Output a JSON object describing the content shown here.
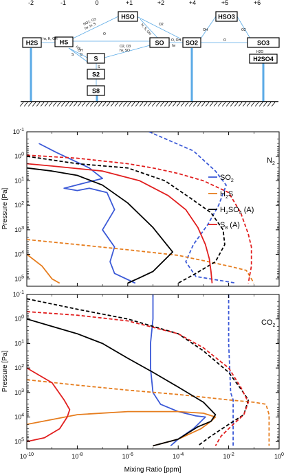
{
  "scheme": {
    "oxidation_states": [
      "-2",
      "-1",
      "0",
      "+1",
      "+2",
      "+4",
      "+5",
      "+6"
    ],
    "species": [
      "H2S",
      "HS",
      "S",
      "S2",
      "S8",
      "HSO",
      "SO",
      "SO2",
      "HSO3",
      "SO3",
      "H2SO4"
    ],
    "reaction_labels": [
      "hv, H, OH",
      "HO2, O3",
      "hv, H, S",
      "H, S, OH",
      "O",
      "O2",
      "O, OH",
      "hv",
      "HS",
      "OH",
      "O",
      "O2, O3",
      "hv, SO",
      "S",
      "S",
      "OH",
      "O",
      "O2",
      "H2O"
    ],
    "colors": {
      "arrow": "#5aaae6",
      "line": "#5aaae6"
    }
  },
  "chart_data": [
    {
      "type": "line",
      "panel_label": "N2",
      "panel_label_main": "N",
      "panel_label_sub": "2",
      "ylabel": "Pressure [Pa]",
      "xscale": "log",
      "yscale": "log",
      "xlim": [
        1e-10,
        1
      ],
      "ylim": [
        0.1,
        200000
      ],
      "y_inverted": true,
      "x_ticks": [
        "10-10",
        "10-8",
        "10-6",
        "10-4",
        "10-2",
        "100"
      ],
      "y_ticks": [
        "10-1",
        "100",
        "101",
        "102",
        "103",
        "104",
        "105"
      ],
      "legend_placement": "right",
      "legend": [
        {
          "main": "SO",
          "sub": "2",
          "suffix": "",
          "color": "#3c5ad7"
        },
        {
          "main": "H",
          "sub": "2",
          "suffix": "S",
          "color": "#e67d1e"
        },
        {
          "main": "H",
          "sub": "2",
          "suffix": "SO",
          "sub2": "4",
          "suffix2": " (A)",
          "color": "#000000"
        },
        {
          "main": "S",
          "sub": "8",
          "suffix": " (A)",
          "color": "#e11e1e"
        }
      ],
      "series": [
        {
          "color": "#3c5ad7",
          "style": "solid",
          "points": [
            [
              3e-10,
              0.3
            ],
            [
              1.5e-09,
              0.7
            ],
            [
              3e-08,
              3
            ],
            [
              1e-07,
              8
            ],
            [
              3e-09,
              20
            ],
            [
              1e-08,
              25
            ],
            [
              3e-08,
              20
            ],
            [
              1.5e-07,
              30
            ],
            [
              3e-07,
              150
            ],
            [
              1e-07,
              1000
            ],
            [
              3e-07,
              5000
            ],
            [
              2e-07,
              20000
            ],
            [
              3e-07,
              60000
            ],
            [
              2e-06,
              150000
            ]
          ]
        },
        {
          "color": "#3c5ad7",
          "style": "dashed",
          "points": [
            [
              7e-06,
              0.1
            ],
            [
              0.0004,
              0.6
            ],
            [
              0.003,
              4
            ],
            [
              0.008,
              15
            ],
            [
              0.004,
              100
            ],
            [
              0.0015,
              600
            ],
            [
              0.0004,
              4000
            ],
            [
              0.0002,
              20000
            ],
            [
              0.0005,
              80000
            ],
            [
              0.02,
              150000
            ]
          ]
        },
        {
          "color": "#e67d1e",
          "style": "solid",
          "points": [
            [
              1e-10,
              10000
            ],
            [
              4e-10,
              30000
            ],
            [
              1e-09,
              100000
            ],
            [
              2e-09,
              150000
            ]
          ]
        },
        {
          "color": "#e67d1e",
          "style": "dashed",
          "points": [
            [
              1e-10,
              2500
            ],
            [
              1e-08,
              4000
            ],
            [
              1e-06,
              6500
            ],
            [
              0.0001,
              11000
            ],
            [
              0.001,
              18000
            ],
            [
              0.01,
              30000
            ],
            [
              0.05,
              45000
            ],
            [
              0.08,
              100000
            ],
            [
              0.1,
              150000
            ]
          ]
        },
        {
          "color": "#000000",
          "style": "solid",
          "points": [
            [
              1e-10,
              3
            ],
            [
              1e-09,
              4
            ],
            [
              1e-08,
              6
            ],
            [
              1e-07,
              15
            ],
            [
              1e-06,
              80
            ],
            [
              1e-05,
              800
            ],
            [
              6e-05,
              8000
            ],
            [
              1e-05,
              50000
            ],
            [
              3e-06,
              90000
            ],
            [
              1e-06,
              150000
            ]
          ]
        },
        {
          "color": "#000000",
          "style": "dashed",
          "points": [
            [
              1e-10,
              1
            ],
            [
              1e-08,
              2
            ],
            [
              1e-06,
              3
            ],
            [
              3e-05,
              10
            ],
            [
              0.0003,
              50
            ],
            [
              0.002,
              200
            ],
            [
              0.006,
              1000
            ],
            [
              0.007,
              4000
            ],
            [
              0.003,
              20000
            ],
            [
              0.0005,
              60000
            ],
            [
              0.0001,
              150000
            ]
          ]
        },
        {
          "color": "#e11e1e",
          "style": "solid",
          "points": [
            [
              1e-10,
              2
            ],
            [
              1e-09,
              2.5
            ],
            [
              1e-07,
              4
            ],
            [
              3e-06,
              10
            ],
            [
              4e-05,
              40
            ],
            [
              0.0002,
              150
            ],
            [
              0.0006,
              800
            ],
            [
              0.0012,
              4000
            ],
            [
              0.0017,
              15000
            ],
            [
              0.002,
              50000
            ],
            [
              0.0022,
              150000
            ]
          ]
        },
        {
          "color": "#e11e1e",
          "style": "dashed",
          "points": [
            [
              1e-10,
              0.9
            ],
            [
              1e-08,
              1.2
            ],
            [
              1e-06,
              2
            ],
            [
              1e-05,
              3
            ],
            [
              0.0001,
              5
            ],
            [
              0.001,
              10
            ],
            [
              0.01,
              30
            ],
            [
              0.03,
              200
            ],
            [
              0.06,
              1500
            ],
            [
              0.08,
              5000
            ],
            [
              0.08,
              30000
            ],
            [
              0.06,
              150000
            ]
          ]
        }
      ]
    },
    {
      "type": "line",
      "panel_label": "CO2",
      "panel_label_main": "CO",
      "panel_label_sub": "2",
      "xlabel": "Mixing Ratio [ppm]",
      "ylabel": "Pressure [Pa]",
      "xscale": "log",
      "yscale": "log",
      "xlim": [
        1e-10,
        1
      ],
      "ylim": [
        0.1,
        200000
      ],
      "y_inverted": true,
      "x_ticks": [
        "10-10",
        "10-8",
        "10-6",
        "10-4",
        "10-2",
        "100"
      ],
      "y_ticks": [
        "10-1",
        "100",
        "101",
        "102",
        "103",
        "104",
        "105"
      ],
      "series": [
        {
          "color": "#3c5ad7",
          "style": "solid",
          "points": [
            [
              1e-05,
              0.1
            ],
            [
              1e-05,
              1
            ],
            [
              8e-06,
              10
            ],
            [
              8e-06,
              100
            ],
            [
              1e-05,
              1000
            ],
            [
              2e-05,
              3000
            ],
            [
              0.0001,
              6000
            ],
            [
              0.0005,
              9000
            ],
            [
              0.0012,
              10000
            ],
            [
              0.0004,
              30000
            ],
            [
              0.0001,
              80000
            ],
            [
              5e-05,
              150000
            ]
          ]
        },
        {
          "color": "#3c5ad7",
          "style": "dashed",
          "points": [
            [
              0.01,
              0.1
            ],
            [
              0.01,
              10
            ],
            [
              0.011,
              100
            ],
            [
              0.012,
              1000
            ],
            [
              0.015,
              2000
            ],
            [
              0.015,
              4000
            ],
            [
              0.015,
              20000
            ],
            [
              0.015,
              150000
            ]
          ]
        },
        {
          "color": "#e67d1e",
          "style": "solid",
          "points": [
            [
              1e-10,
              20000
            ],
            [
              1e-08,
              8000
            ],
            [
              1e-06,
              6000
            ],
            [
              0.0001,
              6000
            ],
            [
              0.001,
              7000
            ],
            [
              0.003,
              10000
            ],
            [
              0.002,
              15000
            ],
            [
              0.0008,
              30000
            ],
            [
              0.0001,
              80000
            ],
            [
              1e-05,
              150000
            ]
          ]
        },
        {
          "color": "#e67d1e",
          "style": "dashed",
          "points": [
            [
              1e-10,
              300
            ],
            [
              1e-08,
              500
            ],
            [
              1e-06,
              800
            ],
            [
              0.0001,
              1200
            ],
            [
              0.01,
              2000
            ],
            [
              0.1,
              2500
            ],
            [
              0.3,
              3000
            ],
            [
              0.4,
              8000
            ],
            [
              0.4,
              30000
            ],
            [
              0.4,
              150000
            ]
          ]
        },
        {
          "color": "#000000",
          "style": "solid",
          "points": [
            [
              1e-10,
              1
            ],
            [
              1e-09,
              2
            ],
            [
              1e-08,
              4
            ],
            [
              1e-07,
              10
            ],
            [
              1e-06,
              40
            ],
            [
              1e-05,
              150
            ],
            [
              0.0001,
              600
            ],
            [
              0.001,
              2500
            ],
            [
              0.003,
              8000
            ],
            [
              0.002,
              15000
            ],
            [
              0.0006,
              25000
            ],
            [
              0.0001,
              80000
            ],
            [
              1e-05,
              150000
            ]
          ]
        },
        {
          "color": "#000000",
          "style": "dashed",
          "points": [
            [
              1e-10,
              0.15
            ],
            [
              1e-08,
              0.4
            ],
            [
              1e-06,
              1
            ],
            [
              0.0001,
              4
            ],
            [
              0.001,
              20
            ],
            [
              0.01,
              150
            ],
            [
              0.03,
              700
            ],
            [
              0.06,
              2000
            ],
            [
              0.04,
              8000
            ],
            [
              0.01,
              20000
            ],
            [
              0.002,
              60000
            ],
            [
              0.0006,
              150000
            ]
          ]
        },
        {
          "color": "#e11e1e",
          "style": "solid",
          "points": [
            [
              1e-10,
              100
            ],
            [
              1e-09,
              400
            ],
            [
              3e-09,
              2000
            ],
            [
              5e-09,
              5000
            ],
            [
              4e-09,
              10000
            ],
            [
              2e-09,
              30000
            ],
            [
              5e-10,
              70000
            ],
            [
              1e-10,
              100000
            ]
          ]
        },
        {
          "color": "#e11e1e",
          "style": "dashed",
          "points": [
            [
              1e-10,
              0.5
            ],
            [
              1e-08,
              0.7
            ],
            [
              1e-06,
              1.2
            ],
            [
              0.0001,
              4
            ],
            [
              0.001,
              15
            ],
            [
              0.01,
              100
            ],
            [
              0.03,
              600
            ],
            [
              0.06,
              2500
            ],
            [
              0.04,
              8000
            ],
            [
              0.015,
              20000
            ],
            [
              0.005,
              60000
            ],
            [
              0.003,
              150000
            ]
          ]
        }
      ]
    }
  ]
}
